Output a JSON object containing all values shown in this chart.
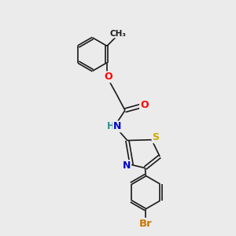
{
  "background_color": "#ebebeb",
  "bond_color": "#1a1a1a",
  "atom_colors": {
    "O": "#ff0000",
    "N": "#0000cd",
    "S": "#ccaa00",
    "Br": "#cc7700",
    "C": "#1a1a1a",
    "H": "#2a9090"
  },
  "font_size": 9,
  "figsize": [
    3.0,
    3.0
  ],
  "dpi": 100
}
